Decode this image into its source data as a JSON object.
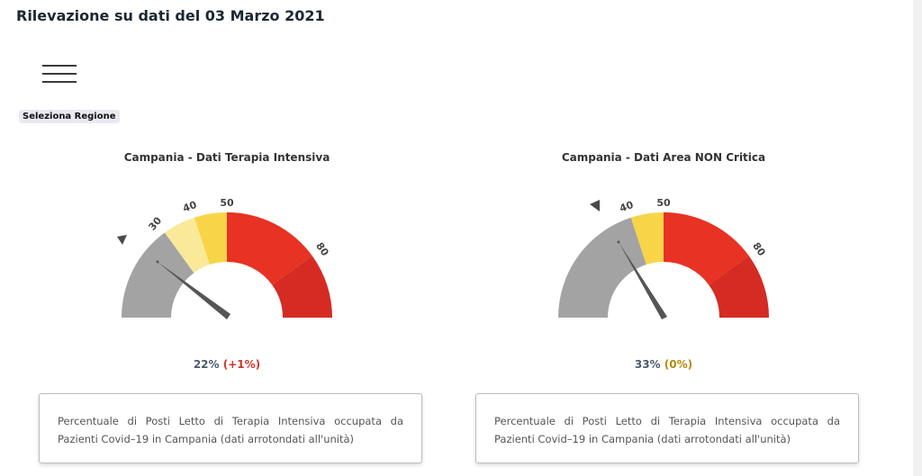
{
  "header": {
    "title": "Rilevazione su dati del 03 Marzo 2021"
  },
  "menu": {
    "icon": "hamburger-menu-icon"
  },
  "region_selector": {
    "label": "Seleziona Regione"
  },
  "panels": [
    {
      "title": "Campania - Dati Terapia Intensiva",
      "value": "22%",
      "delta": "(+1%)",
      "tick_labels": [
        "30",
        "40",
        "50",
        "80"
      ],
      "needle_value": 22,
      "description": "Percentuale di Posti Letto di Terapia Intensiva occupata da Pazienti Covid–19 in Campania (dati arrotondati all'unità)"
    },
    {
      "title": "Campania - Dati Area NON Critica",
      "value": "33%",
      "delta": "(0%)",
      "tick_labels": [
        "40",
        "50",
        "80"
      ],
      "needle_value": 33,
      "description": "Percentuale di Posti Letto di Terapia Intensiva occupata da Pazienti Covid–19 in Campania (dati arrotondati all'unità)"
    }
  ],
  "colors": {
    "grey": "#a3a3a3",
    "light_yellow": "#fbe99a",
    "yellow": "#f8d548",
    "red": "#e83223",
    "dark_red": "#d52b22",
    "needle": "#555555"
  }
}
